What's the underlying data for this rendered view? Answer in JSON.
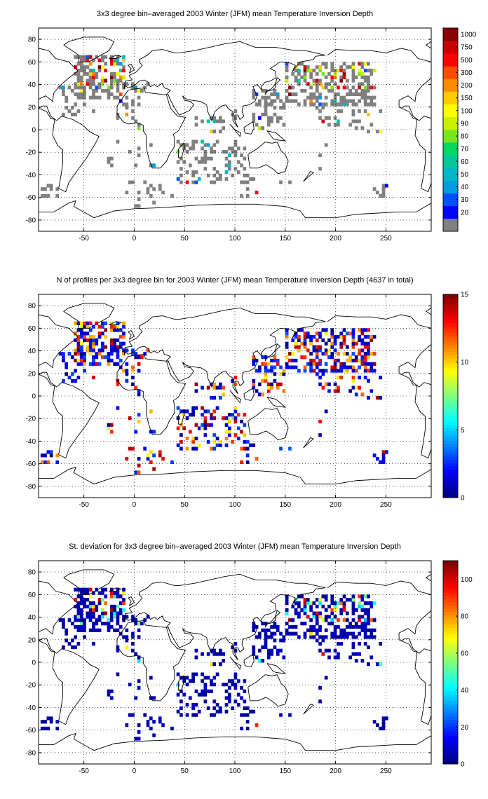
{
  "figure": {
    "panels": [
      {
        "title": "3x3 degree bin–averaged 2003 Winter (JFM) mean Temperature Inversion Depth",
        "kind": "mean",
        "colorbar": {
          "type": "discrete",
          "labels": [
            "20",
            "30",
            "40",
            "50",
            "60",
            "70",
            "80",
            "90",
            "100",
            "150",
            "200",
            "300",
            "500",
            "750",
            "1000"
          ],
          "colors": [
            "#808080",
            "#0000ff",
            "#0050ff",
            "#009ddf",
            "#00b7c8",
            "#00c896",
            "#00d864",
            "#78e61e",
            "#c8f000",
            "#ffff00",
            "#ffcc00",
            "#ff8c00",
            "#ff4b00",
            "#ff0000",
            "#c80000",
            "#8b0000"
          ]
        }
      },
      {
        "title": "N of profiles per 3x3 degree bin for 2003 Winter (JFM) mean Temperature Inversion Depth  (4637 in total)",
        "kind": "count",
        "colorbar": {
          "type": "continuous",
          "min": 0,
          "max": 15,
          "ticks": [
            0,
            5,
            10,
            15
          ]
        }
      },
      {
        "title": "St. deviation for 3x3 degree bin–averaged 2003 Winter (JFM) mean Temperature Inversion Depth",
        "kind": "std",
        "colorbar": {
          "type": "continuous",
          "min": 0,
          "max": 110,
          "ticks": [
            0,
            20,
            40,
            60,
            80,
            100
          ]
        }
      }
    ],
    "x_axis": {
      "min": -95,
      "max": 295,
      "ticks": [
        -50,
        0,
        50,
        100,
        150,
        200,
        250
      ]
    },
    "y_axis": {
      "min": -90,
      "max": 90,
      "ticks": [
        -80,
        -60,
        -40,
        -20,
        0,
        20,
        40,
        60,
        80
      ]
    },
    "grid": "dotted"
  },
  "chart_data": [
    {
      "type": "heatmap",
      "title": "3x3 degree bin–averaged 2003 Winter (JFM) mean Temperature Inversion Depth",
      "bin_size_deg": 3,
      "xlim": [
        -95,
        295
      ],
      "ylim": [
        -90,
        90
      ],
      "color_scale": "discrete, 20 to 1000",
      "bins_note": "most bins in lowest class (≤20, gray); high values (100–1000) near 60N Atlantic and North Pacific"
    },
    {
      "type": "heatmap",
      "title": "N of profiles per 3x3 degree bin for 2003 Winter (JFM) mean Temperature Inversion Depth  (4637 in total)",
      "bin_size_deg": 3,
      "total_profiles": 4637,
      "xlim": [
        -95,
        295
      ],
      "ylim": [
        -90,
        90
      ],
      "color_scale": [
        0,
        15
      ]
    },
    {
      "type": "heatmap",
      "title": "St. deviation for 3x3 degree bin–averaged 2003 Winter (JFM) mean Temperature Inversion Depth",
      "bin_size_deg": 3,
      "xlim": [
        -95,
        295
      ],
      "ylim": [
        -90,
        90
      ],
      "color_scale": [
        0,
        110
      ]
    }
  ]
}
